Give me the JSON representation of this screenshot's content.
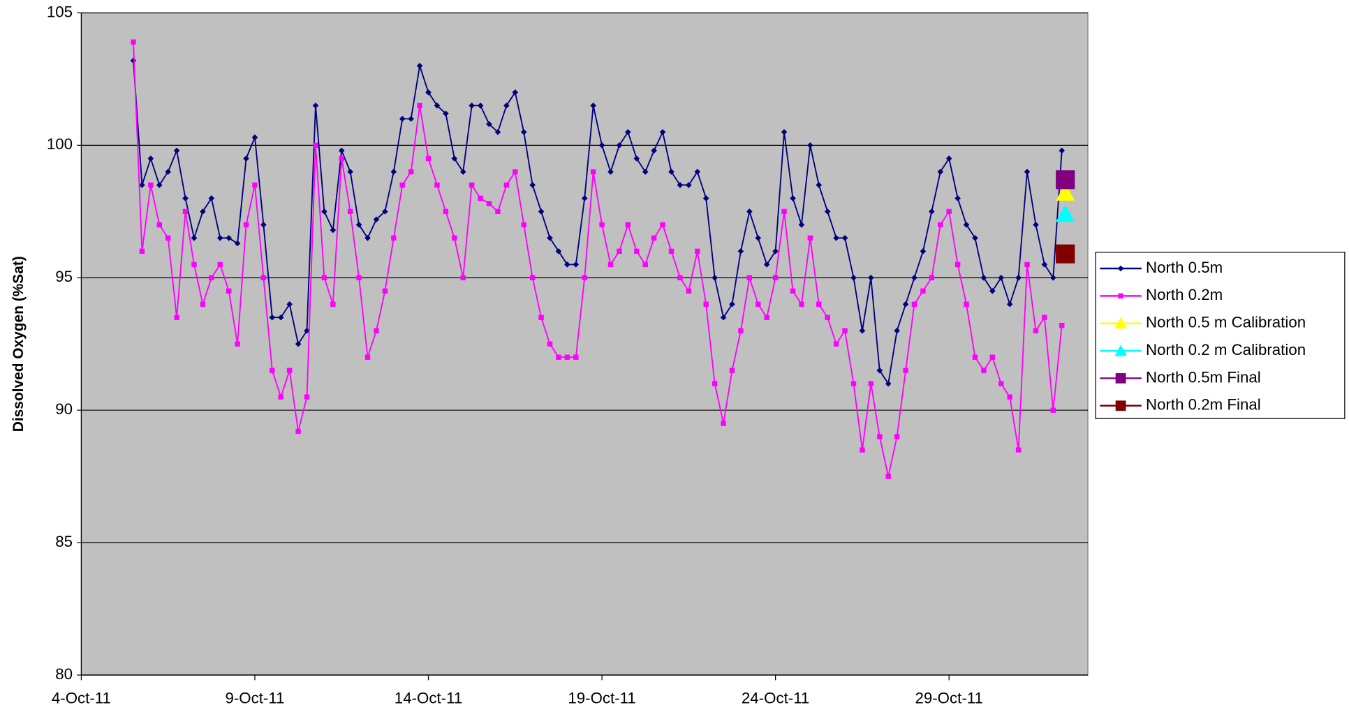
{
  "chart_data": {
    "type": "line",
    "ylabel": "Dissolved Oxygen (%Sat)",
    "xlim": [
      4,
      33
    ],
    "xticks": [
      {
        "value": 4,
        "label": "4-Oct-11"
      },
      {
        "value": 9,
        "label": "9-Oct-11"
      },
      {
        "value": 14,
        "label": "14-Oct-11"
      },
      {
        "value": 19,
        "label": "19-Oct-11"
      },
      {
        "value": 24,
        "label": "24-Oct-11"
      },
      {
        "value": 29,
        "label": "29-Oct-11"
      }
    ],
    "ylim": [
      80,
      105
    ],
    "yticks": [
      80,
      85,
      90,
      95,
      100,
      105
    ],
    "grid": true,
    "legend": "right",
    "x": [
      5.5,
      5.75,
      6,
      6.25,
      6.5,
      6.75,
      7,
      7.25,
      7.5,
      7.75,
      8,
      8.25,
      8.5,
      8.75,
      9,
      9.25,
      9.5,
      9.75,
      10,
      10.25,
      10.5,
      10.75,
      11,
      11.25,
      11.5,
      11.75,
      12,
      12.25,
      12.5,
      12.75,
      13,
      13.25,
      13.5,
      13.75,
      14,
      14.25,
      14.5,
      14.75,
      15,
      15.25,
      15.5,
      15.75,
      16,
      16.25,
      16.5,
      16.75,
      17,
      17.25,
      17.5,
      17.75,
      18,
      18.25,
      18.5,
      18.75,
      19,
      19.25,
      19.5,
      19.75,
      20,
      20.25,
      20.5,
      20.75,
      21,
      21.25,
      21.5,
      21.75,
      22,
      22.25,
      22.5,
      22.75,
      23,
      23.25,
      23.5,
      23.75,
      24,
      24.25,
      24.5,
      24.75,
      25,
      25.25,
      25.5,
      25.75,
      26,
      26.25,
      26.5,
      26.75,
      27,
      27.25,
      27.5,
      27.75,
      28,
      28.25,
      28.5,
      28.75,
      29,
      29.25,
      29.5,
      29.75,
      30,
      30.25,
      30.5,
      30.75,
      31,
      31.25,
      31.5,
      31.75,
      32,
      32.25
    ],
    "series": [
      {
        "name": "North 0.5m",
        "color": "#000080",
        "marker": "diamond",
        "values": [
          103.2,
          98.5,
          99.5,
          98.5,
          99,
          99.8,
          98,
          96.5,
          97.5,
          98,
          96.5,
          96.5,
          96.3,
          99.5,
          100.3,
          97,
          93.5,
          93.5,
          94,
          92.5,
          93,
          101.5,
          97.5,
          96.8,
          99.8,
          99,
          97,
          96.5,
          97.2,
          97.5,
          99,
          101,
          101,
          103,
          102,
          101.5,
          101.2,
          99.5,
          99,
          101.5,
          101.5,
          100.8,
          100.5,
          101.5,
          102,
          100.5,
          98.5,
          97.5,
          96.5,
          96,
          95.5,
          95.5,
          98,
          101.5,
          100,
          99,
          100,
          100.5,
          99.5,
          99,
          99.8,
          100.5,
          99,
          98.5,
          98.5,
          99,
          98,
          95,
          93.5,
          94,
          96,
          97.5,
          96.5,
          95.5,
          96,
          100.5,
          98,
          97,
          100,
          98.5,
          97.5,
          96.5,
          96.5,
          95,
          93,
          95,
          91.5,
          91,
          93,
          94,
          95,
          96,
          97.5,
          99,
          99.5,
          98,
          97,
          96.5,
          95,
          94.5,
          95,
          94,
          95,
          99,
          97,
          95.5,
          95,
          99.8
        ]
      },
      {
        "name": "North 0.2m",
        "color": "#ff00ff",
        "marker": "square",
        "values": [
          103.9,
          96,
          98.5,
          97,
          96.5,
          93.5,
          97.5,
          95.5,
          94,
          95,
          95.5,
          94.5,
          92.5,
          97,
          98.5,
          95,
          91.5,
          90.5,
          91.5,
          89.2,
          90.5,
          100,
          95,
          94,
          99.5,
          97.5,
          95,
          92,
          93,
          94.5,
          96.5,
          98.5,
          99,
          101.5,
          99.5,
          98.5,
          97.5,
          96.5,
          95,
          98.5,
          98,
          97.8,
          97.5,
          98.5,
          99,
          97,
          95,
          93.5,
          92.5,
          92,
          92,
          92,
          95,
          99,
          97,
          95.5,
          96,
          97,
          96,
          95.5,
          96.5,
          97,
          96,
          95,
          94.5,
          96,
          94,
          91,
          89.5,
          91.5,
          93,
          95,
          94,
          93.5,
          95,
          97.5,
          94.5,
          94,
          96.5,
          94,
          93.5,
          92.5,
          93,
          91,
          88.5,
          91,
          89,
          87.5,
          89,
          91.5,
          94,
          94.5,
          95,
          97,
          97.5,
          95.5,
          94,
          92,
          91.5,
          92,
          91,
          90.5,
          88.5,
          95.5,
          93,
          93.5,
          90,
          93.2
        ]
      },
      {
        "name": "North 0.5 m Calibration",
        "color": "#ffff00",
        "marker": "triangle",
        "x": [
          32.35
        ],
        "values": [
          98.2
        ]
      },
      {
        "name": "North 0.2 m Calibration",
        "color": "#00ffff",
        "marker": "triangle",
        "x": [
          32.35
        ],
        "values": [
          97.4
        ]
      },
      {
        "name": "North 0.5m Final",
        "color": "#800080",
        "marker": "bigsquare",
        "x": [
          32.35
        ],
        "values": [
          98.7
        ]
      },
      {
        "name": "North 0.2m Final",
        "color": "#800000",
        "marker": "bigsquare",
        "x": [
          32.35
        ],
        "values": [
          95.9
        ]
      }
    ]
  }
}
